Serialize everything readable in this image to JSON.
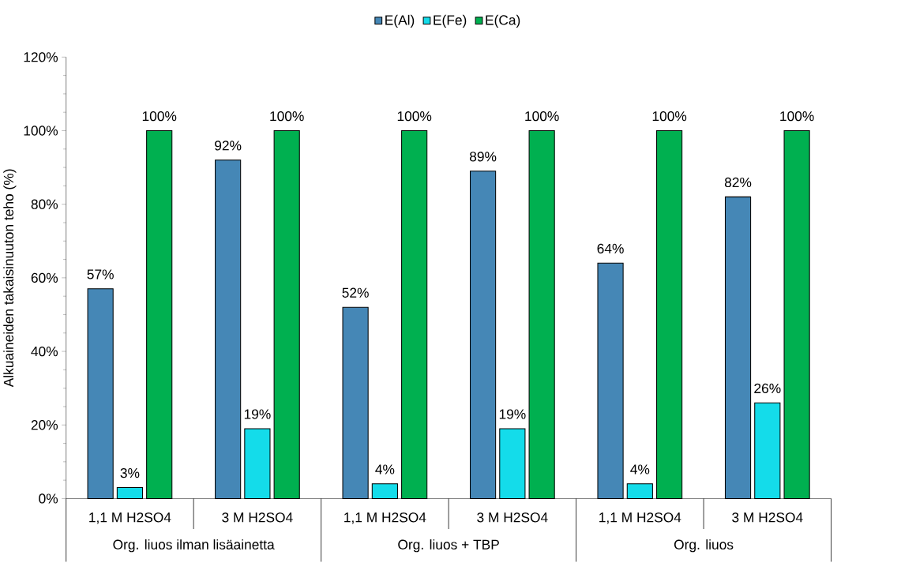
{
  "chart_data": {
    "type": "bar",
    "categories": [
      "1,1 M H2SO4",
      "3 M H2SO4",
      "1,1 M H2SO4",
      "3 M H2SO4",
      "1,1 M H2SO4",
      "3 M H2SO4"
    ],
    "annotations": [
      "Org. liuos ilman lisäainetta",
      "Org. liuos + TBP",
      "Org. liuos"
    ],
    "ylabel": "Alkuaineiden takaisinuuton teho (%)",
    "ylim": [
      0,
      120
    ],
    "yticks": [
      {
        "value": 0,
        "label": "0%"
      },
      {
        "value": 20,
        "label": "20%"
      },
      {
        "value": 40,
        "label": "40%"
      },
      {
        "value": 60,
        "label": "60%"
      },
      {
        "value": 80,
        "label": "80%"
      },
      {
        "value": 100,
        "label": "100%"
      },
      {
        "value": 120,
        "label": "120%"
      }
    ],
    "series": [
      {
        "name": "E(Al)",
        "color": "#4587b6",
        "values": [
          57,
          92,
          52,
          89,
          64,
          82
        ],
        "value_labels": [
          "57%",
          "92%",
          "52%",
          "89%",
          "64%",
          "82%"
        ]
      },
      {
        "name": "E(Fe)",
        "color": "#14dcea",
        "values": [
          3,
          19,
          4,
          19,
          4,
          26
        ],
        "value_labels": [
          "3%",
          "19%",
          "4%",
          "19%",
          "4%",
          "26%"
        ]
      },
      {
        "name": "E(Ca)",
        "color": "#00b050",
        "values": [
          100,
          100,
          100,
          100,
          100,
          100
        ],
        "value_labels": [
          "100%",
          "100%",
          "100%",
          "100%",
          "100%",
          "100%"
        ]
      }
    ],
    "legend": "top",
    "grid": false
  }
}
